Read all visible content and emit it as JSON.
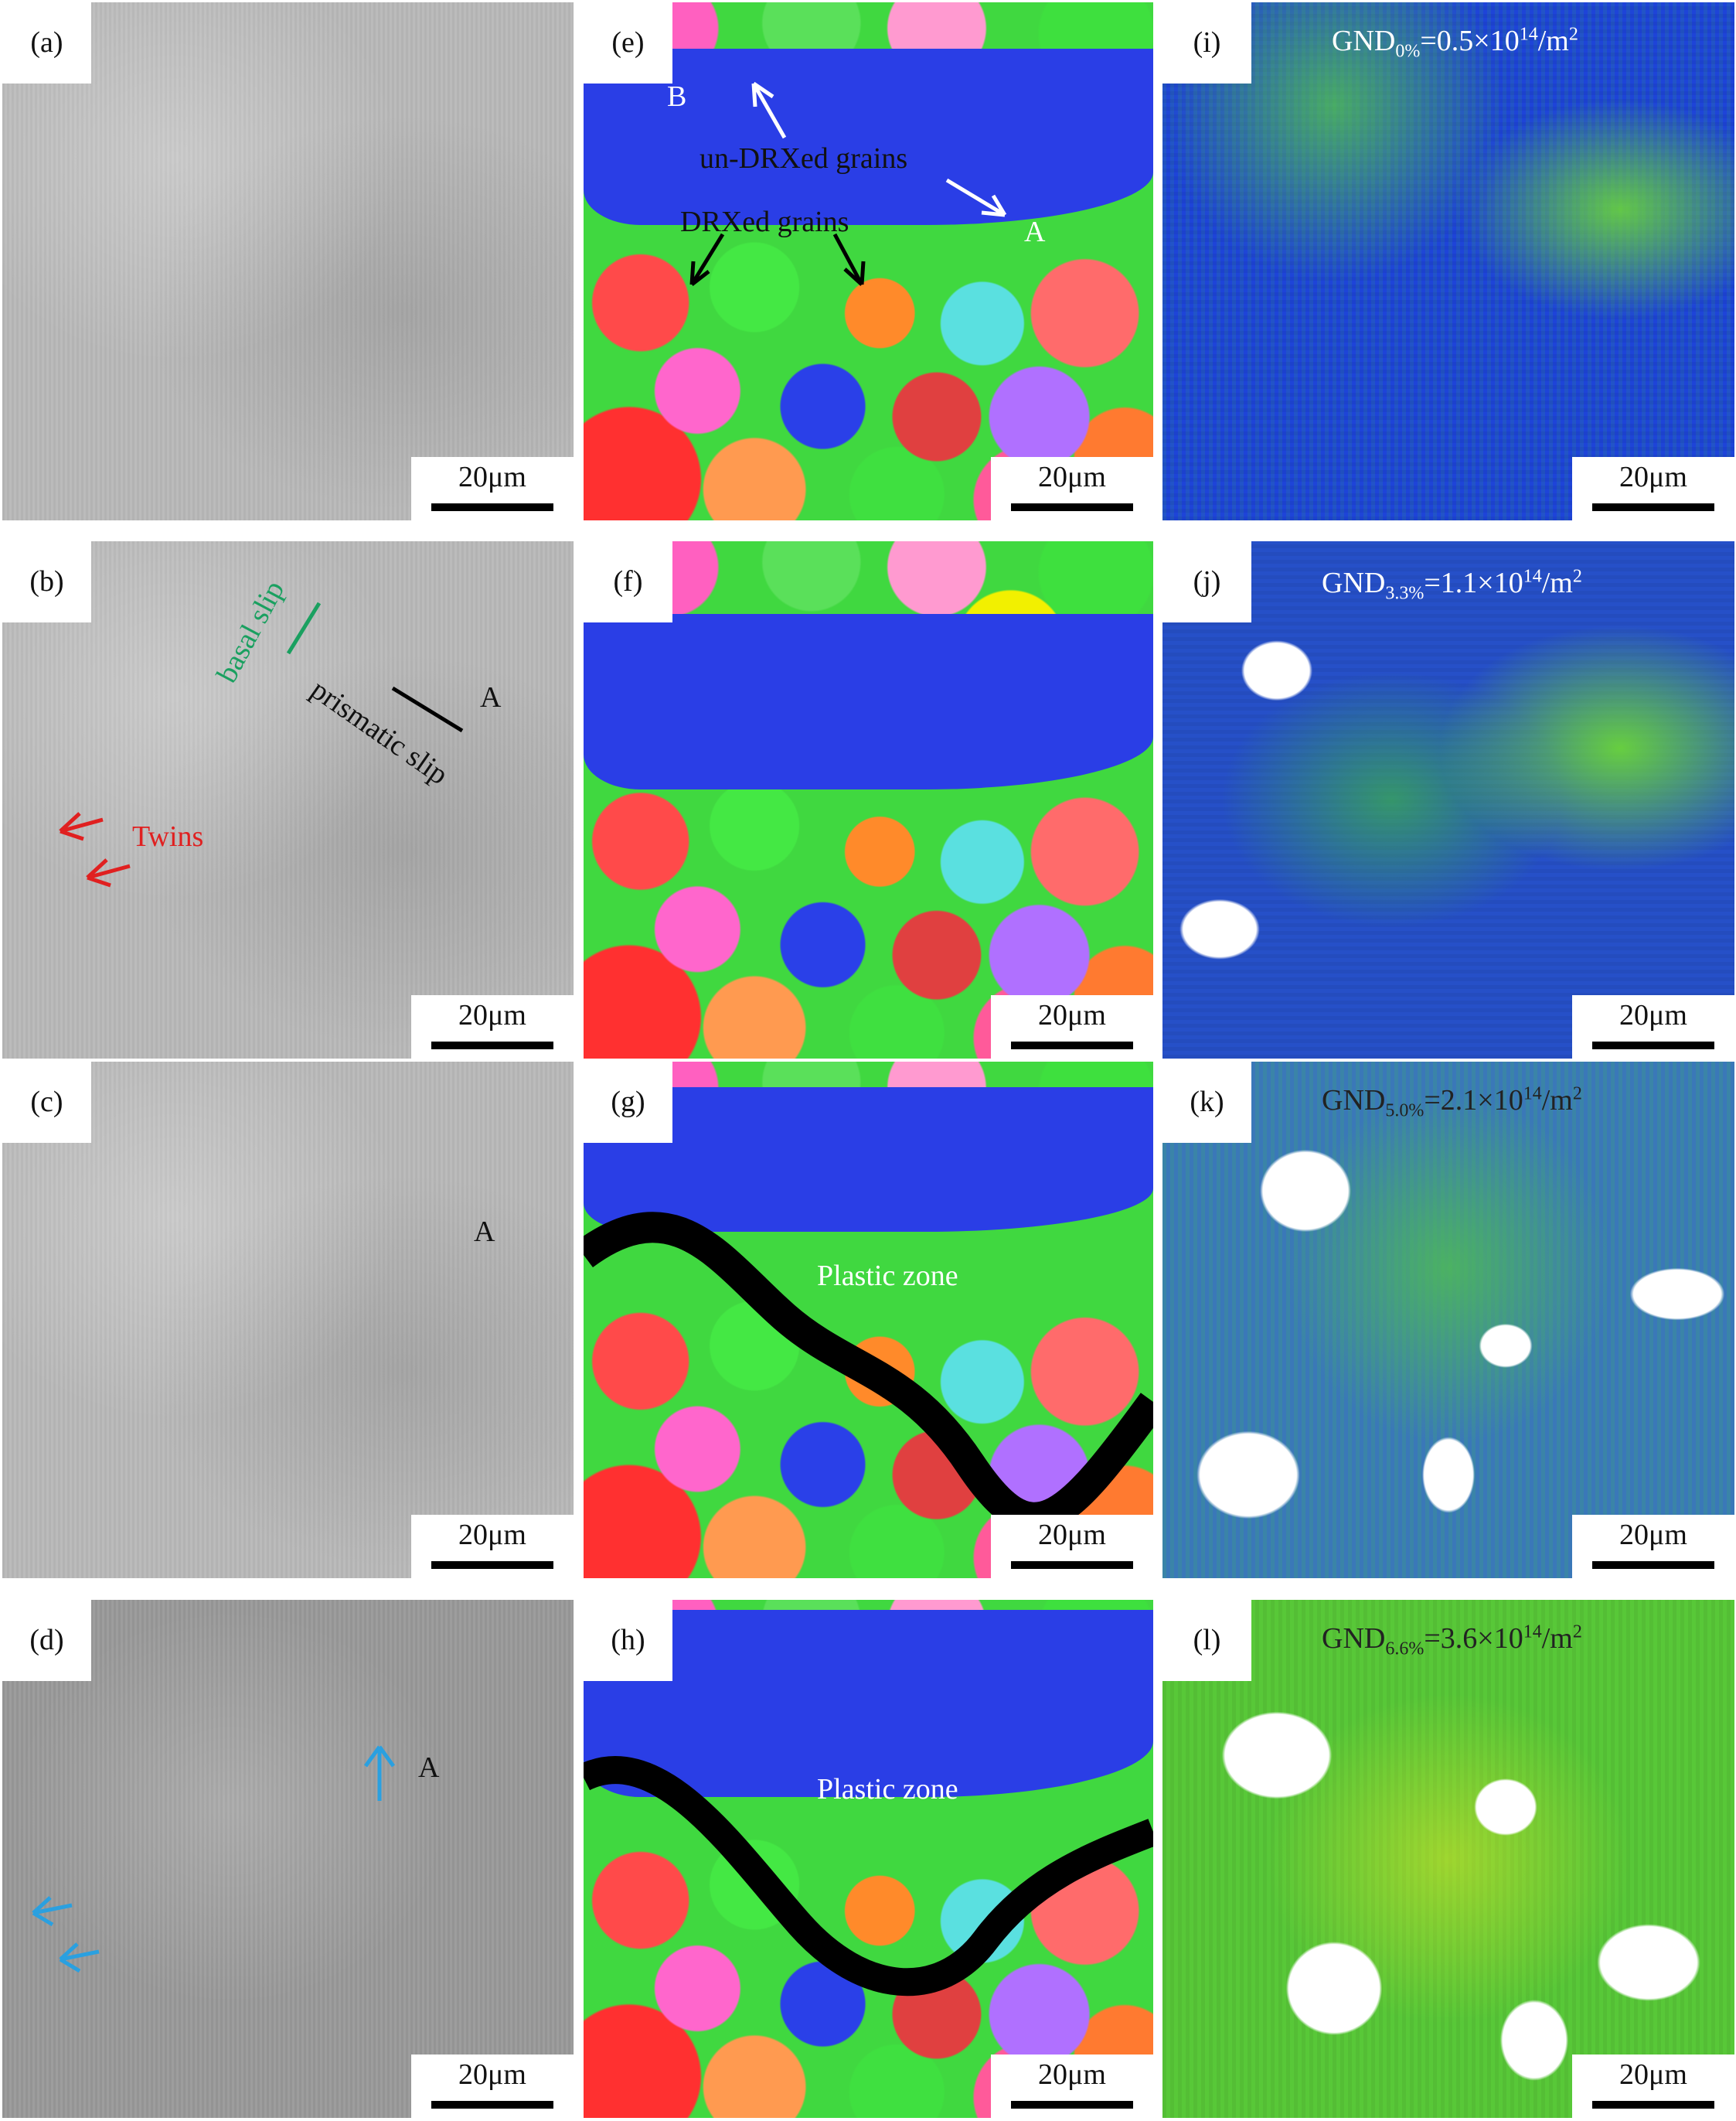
{
  "panels": [
    {
      "label": "(a)",
      "scale_bar": "20μm",
      "annotations": []
    },
    {
      "label": "(b)",
      "scale_bar": "20μm",
      "annotations": [
        "basal slip",
        "prismatic slip",
        "A",
        "Twins"
      ]
    },
    {
      "label": "(c)",
      "scale_bar": "20μm",
      "annotations": [
        "A"
      ]
    },
    {
      "label": "(d)",
      "scale_bar": "20μm",
      "annotations": [
        "A"
      ]
    },
    {
      "label": "(e)",
      "scale_bar": "20μm",
      "annotations": [
        "B",
        "un-DRXed grains",
        "DRXed grains",
        "A"
      ]
    },
    {
      "label": "(f)",
      "scale_bar": "20μm",
      "annotations": []
    },
    {
      "label": "(g)",
      "scale_bar": "20μm",
      "annotations": [
        "Plastic zone"
      ]
    },
    {
      "label": "(h)",
      "scale_bar": "20μm",
      "annotations": [
        "Plastic zone"
      ]
    },
    {
      "label": "(i)",
      "scale_bar": "20μm",
      "annotations": [
        {
          "base": "GND",
          "sub": "0%",
          "main": "=0.5×10",
          "sup": "14",
          "unit": "/m",
          "unit_sup": "2"
        }
      ]
    },
    {
      "label": "(j)",
      "scale_bar": "20μm",
      "annotations": [
        {
          "base": "GND",
          "sub": "3.3%",
          "main": "=1.1×10",
          "sup": "14",
          "unit": "/m",
          "unit_sup": "2"
        }
      ]
    },
    {
      "label": "(k)",
      "scale_bar": "20μm",
      "annotations": [
        {
          "base": "GND",
          "sub": "5.0%",
          "main": "=2.1×10",
          "sup": "14",
          "unit": "/m",
          "unit_sup": "2"
        }
      ]
    },
    {
      "label": "(l)",
      "scale_bar": "20μm",
      "annotations": [
        {
          "base": "GND",
          "sub": "6.6%",
          "main": "=3.6×10",
          "sup": "14",
          "unit": "/m",
          "unit_sup": "2"
        }
      ]
    }
  ]
}
